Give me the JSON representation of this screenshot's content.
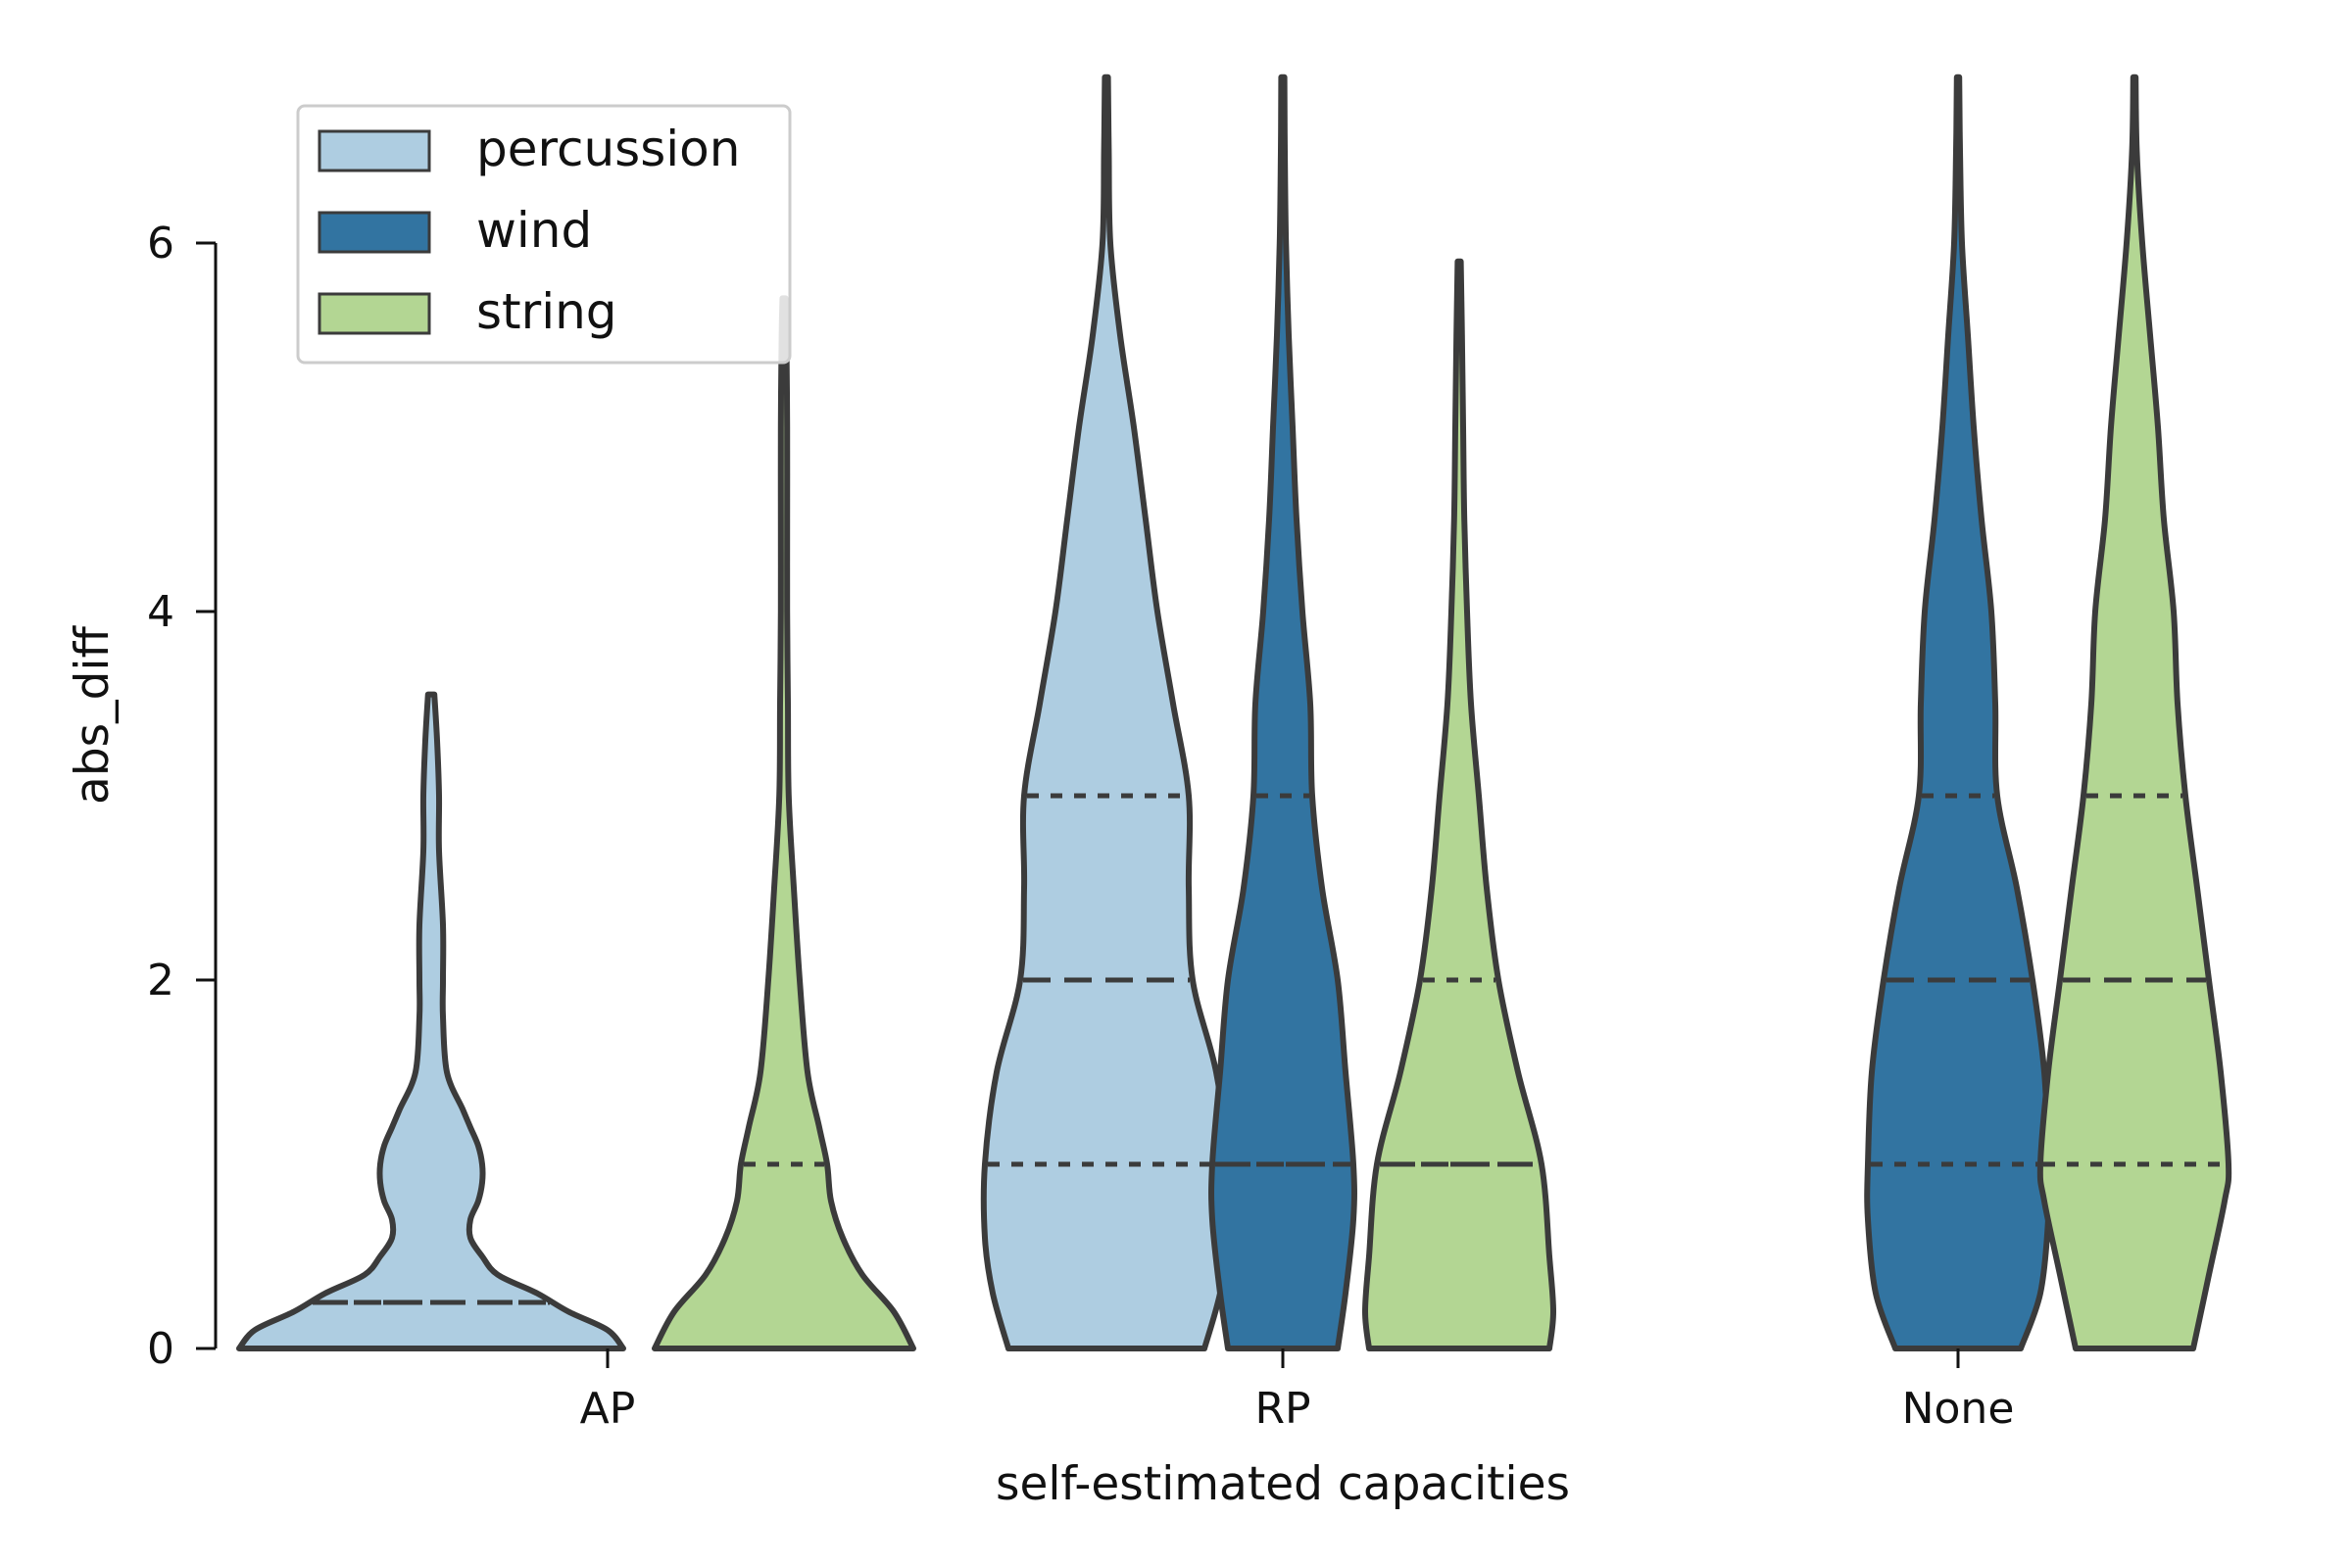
{
  "chart_data": {
    "type": "violin",
    "title": "",
    "xlabel": "self-estimated capacities",
    "ylabel": "abs_diff",
    "categories": [
      "AP",
      "RP",
      "None"
    ],
    "ylim": [
      0,
      6.9
    ],
    "yticks": [
      "0",
      "2",
      "4",
      "6"
    ],
    "ytick_values": [
      0,
      2,
      4,
      6
    ],
    "legend": {
      "position": "top-left"
    },
    "colors": {
      "percussion": "#aecde1",
      "wind": "#3274a1",
      "string": "#b3d693",
      "edge": "#3b3b3b"
    },
    "series": [
      {
        "name": "percussion",
        "quartiles": [
          [
            0,
            0.25,
            0.25
          ],
          [
            1,
            2,
            3
          ],
          null
        ],
        "violins": [
          {
            "category": "AP",
            "max": 3.55,
            "profile": [
              [
                0,
                0.49
              ],
              [
                0.1,
                0.45
              ],
              [
                0.2,
                0.35
              ],
              [
                0.3,
                0.27
              ],
              [
                0.4,
                0.17
              ],
              [
                0.5,
                0.13
              ],
              [
                0.6,
                0.1
              ],
              [
                0.7,
                0.1
              ],
              [
                0.8,
                0.12
              ],
              [
                0.9,
                0.13
              ],
              [
                1.0,
                0.13
              ],
              [
                1.1,
                0.12
              ],
              [
                1.2,
                0.1
              ],
              [
                1.3,
                0.08
              ],
              [
                1.5,
                0.04
              ],
              [
                1.8,
                0.03
              ],
              [
                2.0,
                0.03
              ],
              [
                2.3,
                0.03
              ],
              [
                2.7,
                0.02
              ],
              [
                3.0,
                0.02
              ],
              [
                3.3,
                0.015
              ],
              [
                3.55,
                0.008
              ]
            ]
          },
          {
            "category": "RP",
            "max": 6.9,
            "profile": [
              [
                0,
                0.25
              ],
              [
                0.3,
                0.29
              ],
              [
                0.6,
                0.31
              ],
              [
                1.0,
                0.31
              ],
              [
                1.5,
                0.28
              ],
              [
                2.0,
                0.22
              ],
              [
                2.5,
                0.21
              ],
              [
                3.0,
                0.21
              ],
              [
                3.5,
                0.17
              ],
              [
                4.0,
                0.13
              ],
              [
                4.5,
                0.1
              ],
              [
                5.0,
                0.07
              ],
              [
                5.5,
                0.035
              ],
              [
                6.0,
                0.01
              ],
              [
                6.5,
                0.006
              ],
              [
                6.9,
                0.004
              ]
            ]
          },
          null
        ]
      },
      {
        "name": "wind",
        "quartiles": [
          null,
          [
            1,
            1,
            3
          ],
          [
            1,
            2,
            3
          ]
        ],
        "violins": [
          null,
          {
            "category": "RP",
            "max": 6.9,
            "profile": [
              [
                0,
                0.14
              ],
              [
                0.3,
                0.16
              ],
              [
                0.7,
                0.18
              ],
              [
                1.0,
                0.18
              ],
              [
                1.5,
                0.16
              ],
              [
                2.0,
                0.14
              ],
              [
                2.5,
                0.1
              ],
              [
                3.0,
                0.075
              ],
              [
                3.5,
                0.07
              ],
              [
                4.0,
                0.05
              ],
              [
                4.5,
                0.035
              ],
              [
                5.0,
                0.025
              ],
              [
                5.5,
                0.015
              ],
              [
                6.0,
                0.008
              ],
              [
                6.5,
                0.005
              ],
              [
                6.9,
                0.004
              ]
            ]
          },
          {
            "category": "None",
            "max": 6.9,
            "profile": [
              [
                0,
                0.16
              ],
              [
                0.3,
                0.21
              ],
              [
                0.7,
                0.23
              ],
              [
                1.0,
                0.23
              ],
              [
                1.5,
                0.22
              ],
              [
                2.0,
                0.19
              ],
              [
                2.5,
                0.15
              ],
              [
                3.0,
                0.1
              ],
              [
                3.5,
                0.095
              ],
              [
                4.0,
                0.085
              ],
              [
                4.5,
                0.06
              ],
              [
                5.0,
                0.04
              ],
              [
                5.5,
                0.025
              ],
              [
                6.0,
                0.01
              ],
              [
                6.5,
                0.005
              ],
              [
                6.9,
                0.003
              ]
            ]
          }
        ]
      },
      {
        "name": "string",
        "quartiles": [
          [
            0,
            0,
            1
          ],
          [
            1,
            1,
            2
          ],
          [
            1,
            2,
            3
          ]
        ],
        "violins": [
          {
            "category": "AP",
            "max": 5.7,
            "profile": [
              [
                0,
                0.33
              ],
              [
                0.2,
                0.28
              ],
              [
                0.4,
                0.2
              ],
              [
                0.6,
                0.15
              ],
              [
                0.8,
                0.12
              ],
              [
                1.0,
                0.11
              ],
              [
                1.2,
                0.09
              ],
              [
                1.5,
                0.06
              ],
              [
                2.0,
                0.04
              ],
              [
                2.5,
                0.025
              ],
              [
                3.0,
                0.012
              ],
              [
                3.5,
                0.01
              ],
              [
                4.0,
                0.008
              ],
              [
                4.5,
                0.008
              ],
              [
                5.0,
                0.008
              ],
              [
                5.5,
                0.006
              ],
              [
                5.7,
                0.004
              ]
            ]
          },
          {
            "category": "RP",
            "max": 5.9,
            "profile": [
              [
                0,
                0.23
              ],
              [
                0.2,
                0.24
              ],
              [
                0.5,
                0.23
              ],
              [
                1.0,
                0.21
              ],
              [
                1.5,
                0.15
              ],
              [
                2.0,
                0.1
              ],
              [
                2.5,
                0.07
              ],
              [
                3.0,
                0.05
              ],
              [
                3.5,
                0.03
              ],
              [
                4.0,
                0.02
              ],
              [
                4.5,
                0.013
              ],
              [
                5.0,
                0.01
              ],
              [
                5.5,
                0.007
              ],
              [
                5.9,
                0.004
              ]
            ]
          },
          {
            "category": "None",
            "max": 6.9,
            "profile": [
              [
                0,
                0.15
              ],
              [
                0.4,
                0.19
              ],
              [
                0.8,
                0.23
              ],
              [
                1.0,
                0.24
              ],
              [
                1.5,
                0.22
              ],
              [
                2.0,
                0.19
              ],
              [
                2.5,
                0.16
              ],
              [
                3.0,
                0.13
              ],
              [
                3.5,
                0.11
              ],
              [
                4.0,
                0.1
              ],
              [
                4.5,
                0.075
              ],
              [
                5.0,
                0.06
              ],
              [
                5.5,
                0.04
              ],
              [
                6.0,
                0.02
              ],
              [
                6.5,
                0.006
              ],
              [
                6.9,
                0.003
              ]
            ]
          }
        ]
      }
    ]
  }
}
